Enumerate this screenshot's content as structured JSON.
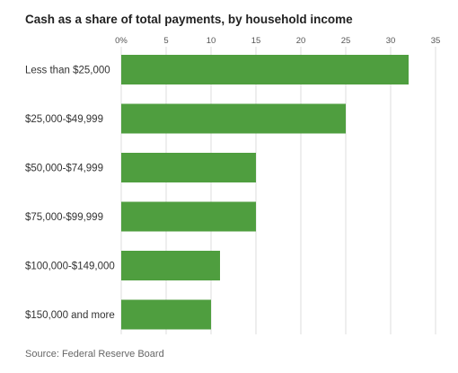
{
  "chart_data": {
    "type": "bar",
    "orientation": "horizontal",
    "title": "Cash as a share of total payments, by household income",
    "source": "Source: Federal Reserve Board",
    "categories": [
      "Less than $25,000",
      "$25,000-$49,999",
      "$50,000-$74,999",
      "$75,000-$99,999",
      "$100,000-$149,000",
      "$150,000 and more"
    ],
    "values": [
      32,
      25,
      15,
      15,
      11,
      10
    ],
    "xlim": [
      0,
      35
    ],
    "ticks": [
      0,
      5,
      10,
      15,
      20,
      25,
      30,
      35
    ],
    "tick_labels": [
      "0%",
      "5",
      "10",
      "15",
      "20",
      "25",
      "30",
      "35"
    ],
    "grid": true,
    "bar_color": "#4f9e3f",
    "grid_color": "#dcdcdc"
  }
}
